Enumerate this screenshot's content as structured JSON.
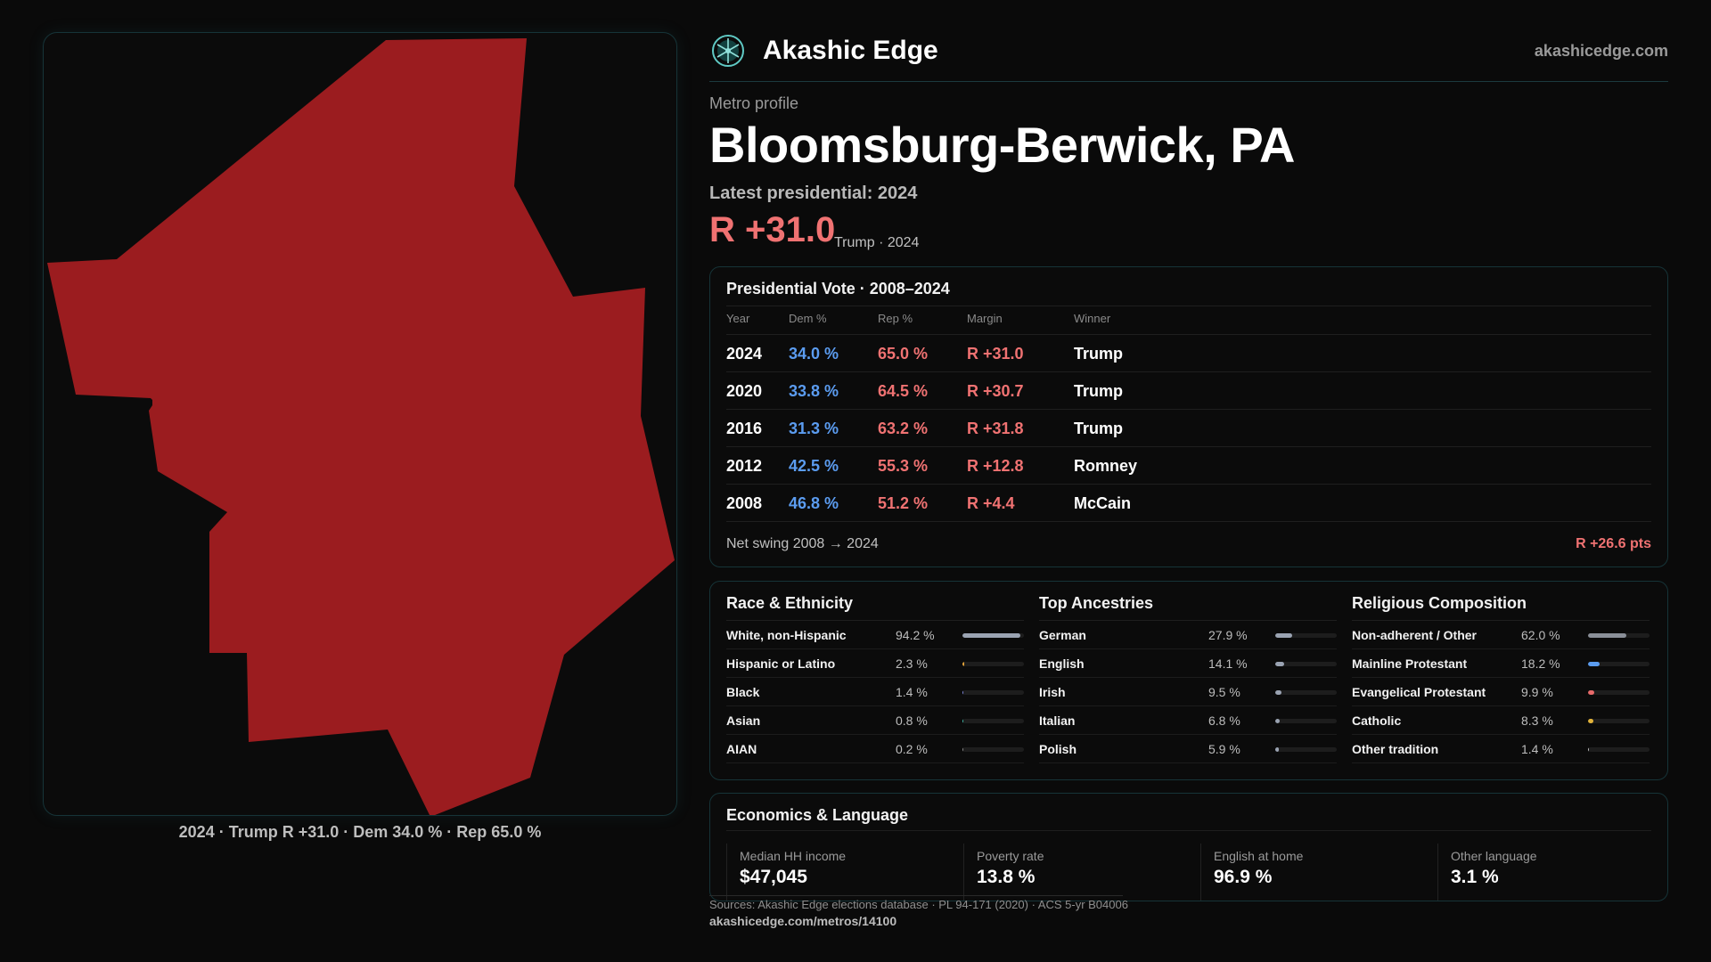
{
  "brand": {
    "name": "Akashic Edge",
    "site": "akashicedge.com"
  },
  "profile": {
    "kicker": "Metro profile",
    "title": "Bloomsburg-Berwick, PA",
    "latest_label": "Latest presidential: 2024",
    "headline_margin": "R +31.0",
    "headline_sub": "Trump · 2024"
  },
  "map": {
    "caption": "2024 · Trump R +31.0 · Dem 34.0 % · Rep 65.0 %",
    "fill_color": "#9b1c1f"
  },
  "vote_table": {
    "title": "Presidential Vote · 2008–2024",
    "headers": {
      "year": "Year",
      "dem": "Dem %",
      "rep": "Rep %",
      "margin": "Margin",
      "winner": "Winner"
    },
    "rows": [
      {
        "year": "2024",
        "dem": "34.0 %",
        "rep": "65.0 %",
        "margin": "R +31.0",
        "winner": "Trump"
      },
      {
        "year": "2020",
        "dem": "33.8 %",
        "rep": "64.5 %",
        "margin": "R +30.7",
        "winner": "Trump"
      },
      {
        "year": "2016",
        "dem": "31.3 %",
        "rep": "63.2 %",
        "margin": "R +31.8",
        "winner": "Trump"
      },
      {
        "year": "2012",
        "dem": "42.5 %",
        "rep": "55.3 %",
        "margin": "R +12.8",
        "winner": "Romney"
      },
      {
        "year": "2008",
        "dem": "46.8 %",
        "rep": "51.2 %",
        "margin": "R +4.4",
        "winner": "McCain"
      }
    ],
    "swing_label": "Net swing 2008 → 2024",
    "swing_value": "R +26.6 pts"
  },
  "race": {
    "title": "Race & Ethnicity",
    "rows": [
      {
        "label": "White, non-Hispanic",
        "value": "94.2 %",
        "share": 0.942,
        "color": "#9aa3b2"
      },
      {
        "label": "Hispanic or Latino",
        "value": "2.3 %",
        "share": 0.023,
        "color": "#e2a23a"
      },
      {
        "label": "Black",
        "value": "1.4 %",
        "share": 0.014,
        "color": "#7b84d8"
      },
      {
        "label": "Asian",
        "value": "0.8 %",
        "share": 0.008,
        "color": "#3fb5a5"
      },
      {
        "label": "AIAN",
        "value": "0.2 %",
        "share": 0.002,
        "color": "#8a8a8a"
      }
    ]
  },
  "ancestry": {
    "title": "Top Ancestries",
    "rows": [
      {
        "label": "German",
        "value": "27.9 %",
        "share": 0.279,
        "color": "#9aa3b2"
      },
      {
        "label": "English",
        "value": "14.1 %",
        "share": 0.141,
        "color": "#9aa3b2"
      },
      {
        "label": "Irish",
        "value": "9.5 %",
        "share": 0.095,
        "color": "#9aa3b2"
      },
      {
        "label": "Italian",
        "value": "6.8 %",
        "share": 0.068,
        "color": "#9aa3b2"
      },
      {
        "label": "Polish",
        "value": "5.9 %",
        "share": 0.059,
        "color": "#9aa3b2"
      }
    ]
  },
  "religion": {
    "title": "Religious Composition",
    "rows": [
      {
        "label": "Non-adherent / Other",
        "value": "62.0 %",
        "share": 0.62,
        "color": "#8a8f98"
      },
      {
        "label": "Mainline Protestant",
        "value": "18.2 %",
        "share": 0.182,
        "color": "#5b9cf0"
      },
      {
        "label": "Evangelical Protestant",
        "value": "9.9 %",
        "share": 0.099,
        "color": "#e86a6a"
      },
      {
        "label": "Catholic",
        "value": "8.3 %",
        "share": 0.083,
        "color": "#e2b33a"
      },
      {
        "label": "Other tradition",
        "value": "1.4 %",
        "share": 0.014,
        "color": "#bdbdbd"
      }
    ]
  },
  "economics": {
    "title": "Economics & Language",
    "stats": [
      {
        "label": "Median HH income",
        "value": "$47,045"
      },
      {
        "label": "Poverty rate",
        "value": "13.8 %"
      },
      {
        "label": "English at home",
        "value": "96.9 %"
      },
      {
        "label": "Other language",
        "value": "3.1 %"
      }
    ]
  },
  "footer": {
    "sources": "Sources: Akashic Edge elections database · PL 94-171 (2020) · ACS 5-yr B04006",
    "url": "akashicedge.com/metros/14100"
  }
}
